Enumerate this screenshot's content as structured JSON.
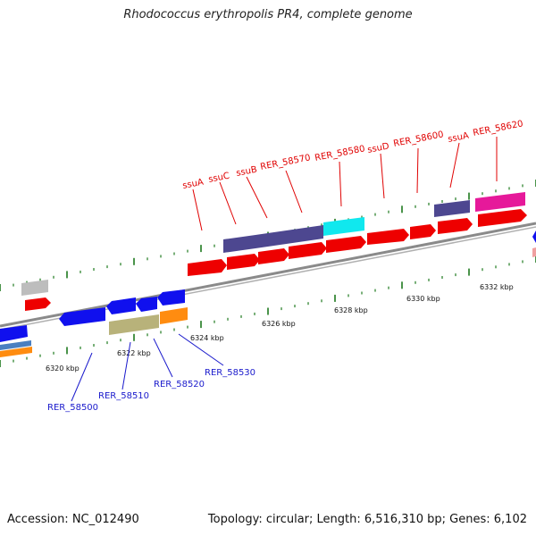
{
  "title": "Rhodococcus erythropolis PR4, complete genome",
  "footer": {
    "accession": "Accession: NC_012490",
    "summary": "Topology: circular; Length: 6,516,310 bp; Genes: 6,102"
  },
  "colors": {
    "backbone": "#8a8a8a",
    "tick": "#1e7a1e",
    "gene_red": "#ee0000",
    "gene_blue": "#1010ee",
    "gene_purple": "#4d4790",
    "gene_cyan": "#10e8ee",
    "gene_magenta": "#e6199a",
    "gene_olive": "#b8b27a",
    "gene_orange": "#ff8c10",
    "gene_gray": "#bdbdbd",
    "gene_steelblue": "#4a7fc0",
    "label_red": "#e00000",
    "label_blue": "#1a1acc"
  },
  "ticks": [
    "6320 kbp",
    "6322 kbp",
    "6324 kbp",
    "6326 kbp",
    "6328 kbp",
    "6330 kbp",
    "6332 kbp"
  ],
  "gene_labels_top": [
    "ssuA",
    "ssuC",
    "ssuB",
    "RER_58570",
    "RER_58580",
    "ssuD",
    "RER_58600",
    "ssuA",
    "RER_58620"
  ],
  "gene_labels_bottom": [
    "RER_58500",
    "RER_58510",
    "RER_58520",
    "RER_58530"
  ]
}
